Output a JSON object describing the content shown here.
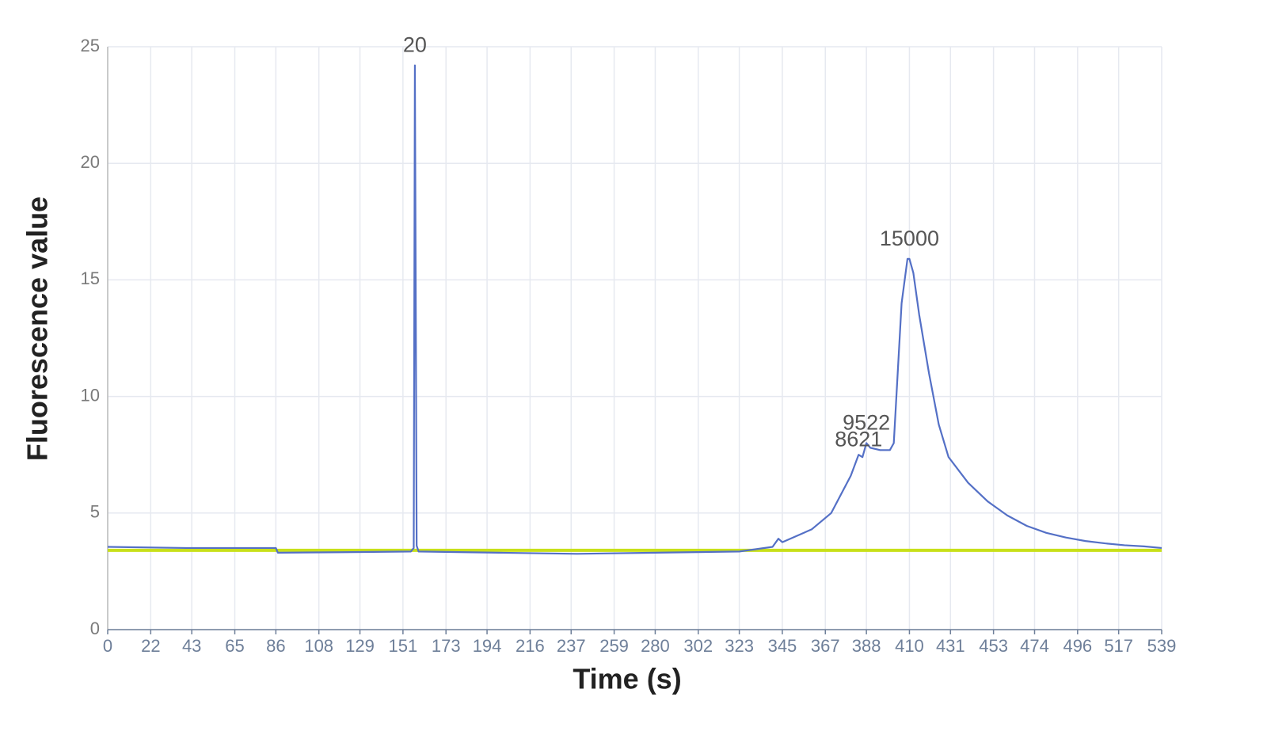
{
  "chart_data": {
    "type": "line",
    "x_label": "Time (s)",
    "y_label": "Fluorescence value",
    "xlim": [
      0,
      539
    ],
    "xticks": [
      0,
      22,
      43,
      65,
      86,
      108,
      129,
      151,
      173,
      194,
      216,
      237,
      259,
      280,
      302,
      323,
      345,
      367,
      388,
      410,
      431,
      453,
      474,
      496,
      517,
      539
    ],
    "ylim": [
      0,
      25
    ],
    "yticks": [
      0,
      5,
      10,
      15,
      20,
      25
    ],
    "grid": true,
    "series": [
      {
        "color": "#5470c6",
        "x": [
          0,
          40,
          86,
          87,
          120,
          155,
          156.5,
          157.1,
          158,
          159,
          200,
          240,
          280,
          323,
          340,
          343,
          345,
          360,
          370,
          375,
          380,
          384,
          386,
          388,
          390,
          395,
          400,
          402,
          404,
          406,
          409,
          410,
          412,
          415,
          420,
          425,
          430,
          440,
          450,
          460,
          470,
          480,
          490,
          500,
          510,
          520,
          530,
          539
        ],
        "values": [
          3.55,
          3.5,
          3.5,
          3.3,
          3.32,
          3.35,
          3.5,
          24.2,
          3.6,
          3.35,
          3.3,
          3.25,
          3.3,
          3.35,
          3.55,
          3.9,
          3.75,
          4.3,
          5.0,
          5.8,
          6.6,
          7.5,
          7.4,
          8.0,
          7.8,
          7.7,
          7.7,
          8.0,
          11,
          14,
          15.9,
          15.9,
          15.3,
          13.5,
          11,
          8.8,
          7.4,
          6.3,
          5.5,
          4.9,
          4.45,
          4.15,
          3.95,
          3.8,
          3.7,
          3.62,
          3.57,
          3.5
        ]
      },
      {
        "color": "#c8e01a",
        "x": [
          0,
          539
        ],
        "values": [
          3.4,
          3.4
        ]
      }
    ],
    "annotations": [
      {
        "text": "20",
        "x": 157.1,
        "y": 24.2
      },
      {
        "text": "15000",
        "x": 410,
        "y": 15.9
      },
      {
        "text": "9522",
        "x": 388,
        "y": 8.0
      },
      {
        "text": "8621",
        "x": 384,
        "y": 7.5
      }
    ]
  }
}
